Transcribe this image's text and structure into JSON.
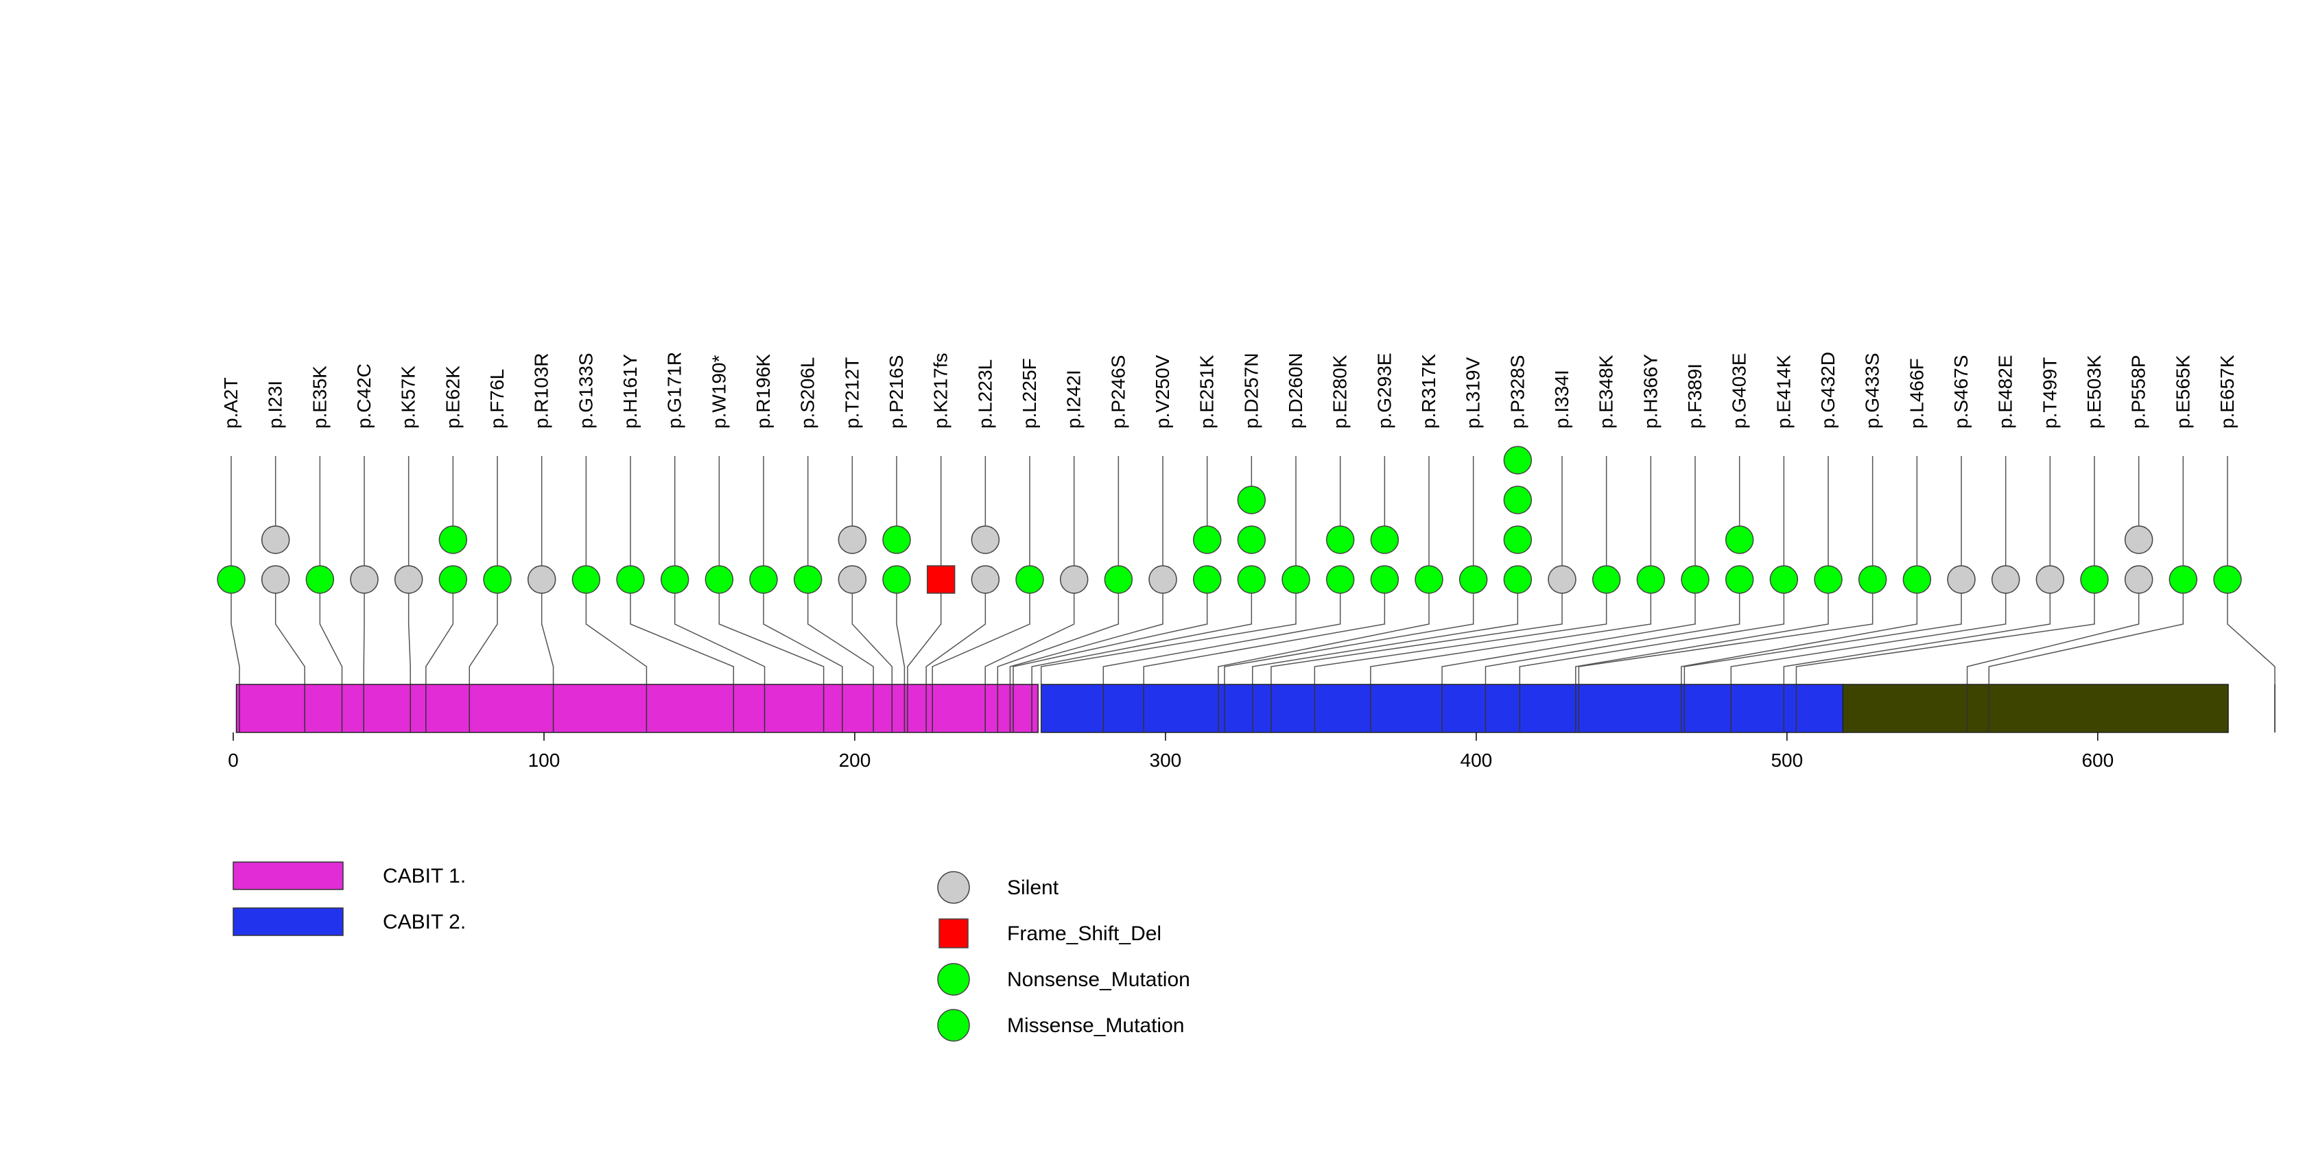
{
  "chart_data": {
    "type": "lollipop",
    "protein_length": 657,
    "x_ticks": [
      0,
      100,
      200,
      300,
      400,
      500,
      600
    ],
    "domains": [
      {
        "name": "CABIT 1.",
        "start": 1,
        "end": 259,
        "color": "#e22cd6"
      },
      {
        "name": "CABIT 2.",
        "start": 260,
        "end": 518,
        "color": "#2233ee"
      },
      {
        "name": "",
        "start": 518,
        "end": 642,
        "color": "#3d4400"
      }
    ],
    "lollipops": [
      {
        "label": "p.A2T",
        "pos": 2,
        "markers": [
          "Missense_Mutation"
        ]
      },
      {
        "label": "p.I23I",
        "pos": 23,
        "markers": [
          "Silent",
          "Silent"
        ]
      },
      {
        "label": "p.E35K",
        "pos": 35,
        "markers": [
          "Missense_Mutation"
        ]
      },
      {
        "label": "p.C42C",
        "pos": 42,
        "markers": [
          "Silent"
        ]
      },
      {
        "label": "p.K57K",
        "pos": 57,
        "markers": [
          "Silent"
        ]
      },
      {
        "label": "p.E62K",
        "pos": 62,
        "markers": [
          "Missense_Mutation",
          "Missense_Mutation"
        ]
      },
      {
        "label": "p.F76L",
        "pos": 76,
        "markers": [
          "Missense_Mutation"
        ]
      },
      {
        "label": "p.R103R",
        "pos": 103,
        "markers": [
          "Silent"
        ]
      },
      {
        "label": "p.G133S",
        "pos": 133,
        "markers": [
          "Missense_Mutation"
        ]
      },
      {
        "label": "p.H161Y",
        "pos": 161,
        "markers": [
          "Missense_Mutation"
        ]
      },
      {
        "label": "p.G171R",
        "pos": 171,
        "markers": [
          "Missense_Mutation"
        ]
      },
      {
        "label": "p.W190*",
        "pos": 190,
        "markers": [
          "Nonsense_Mutation"
        ]
      },
      {
        "label": "p.R196K",
        "pos": 196,
        "markers": [
          "Missense_Mutation"
        ]
      },
      {
        "label": "p.S206L",
        "pos": 206,
        "markers": [
          "Missense_Mutation"
        ]
      },
      {
        "label": "p.T212T",
        "pos": 212,
        "markers": [
          "Silent",
          "Silent"
        ]
      },
      {
        "label": "p.P216S",
        "pos": 216,
        "markers": [
          "Missense_Mutation",
          "Missense_Mutation"
        ]
      },
      {
        "label": "p.K217fs",
        "pos": 217,
        "markers": [
          "Frame_Shift_Del"
        ]
      },
      {
        "label": "p.L223L",
        "pos": 223,
        "markers": [
          "Silent",
          "Silent"
        ]
      },
      {
        "label": "p.L225F",
        "pos": 225,
        "markers": [
          "Missense_Mutation"
        ]
      },
      {
        "label": "p.I242I",
        "pos": 242,
        "markers": [
          "Silent"
        ]
      },
      {
        "label": "p.P246S",
        "pos": 246,
        "markers": [
          "Missense_Mutation"
        ]
      },
      {
        "label": "p.V250V",
        "pos": 250,
        "markers": [
          "Silent"
        ]
      },
      {
        "label": "p.E251K",
        "pos": 251,
        "markers": [
          "Missense_Mutation",
          "Missense_Mutation"
        ]
      },
      {
        "label": "p.D257N",
        "pos": 257,
        "markers": [
          "Missense_Mutation",
          "Missense_Mutation",
          "Missense_Mutation"
        ]
      },
      {
        "label": "p.D260N",
        "pos": 260,
        "markers": [
          "Missense_Mutation"
        ]
      },
      {
        "label": "p.E280K",
        "pos": 280,
        "markers": [
          "Missense_Mutation",
          "Missense_Mutation"
        ]
      },
      {
        "label": "p.G293E",
        "pos": 293,
        "markers": [
          "Missense_Mutation",
          "Missense_Mutation"
        ]
      },
      {
        "label": "p.R317K",
        "pos": 317,
        "markers": [
          "Missense_Mutation"
        ]
      },
      {
        "label": "p.L319V",
        "pos": 319,
        "markers": [
          "Missense_Mutation"
        ]
      },
      {
        "label": "p.P328S",
        "pos": 328,
        "markers": [
          "Missense_Mutation",
          "Missense_Mutation",
          "Missense_Mutation",
          "Missense_Mutation"
        ]
      },
      {
        "label": "p.I334I",
        "pos": 334,
        "markers": [
          "Silent"
        ]
      },
      {
        "label": "p.E348K",
        "pos": 348,
        "markers": [
          "Missense_Mutation"
        ]
      },
      {
        "label": "p.H366Y",
        "pos": 366,
        "markers": [
          "Missense_Mutation"
        ]
      },
      {
        "label": "p.F389I",
        "pos": 389,
        "markers": [
          "Missense_Mutation"
        ]
      },
      {
        "label": "p.G403E",
        "pos": 403,
        "markers": [
          "Missense_Mutation",
          "Missense_Mutation"
        ]
      },
      {
        "label": "p.E414K",
        "pos": 414,
        "markers": [
          "Missense_Mutation"
        ]
      },
      {
        "label": "p.G432D",
        "pos": 432,
        "markers": [
          "Missense_Mutation"
        ]
      },
      {
        "label": "p.G433S",
        "pos": 433,
        "markers": [
          "Missense_Mutation"
        ]
      },
      {
        "label": "p.L466F",
        "pos": 466,
        "markers": [
          "Missense_Mutation"
        ]
      },
      {
        "label": "p.S467S",
        "pos": 467,
        "markers": [
          "Silent"
        ]
      },
      {
        "label": "p.E482E",
        "pos": 482,
        "markers": [
          "Silent"
        ]
      },
      {
        "label": "p.T499T",
        "pos": 499,
        "markers": [
          "Silent"
        ]
      },
      {
        "label": "p.E503K",
        "pos": 503,
        "markers": [
          "Missense_Mutation"
        ]
      },
      {
        "label": "p.P558P",
        "pos": 558,
        "markers": [
          "Silent",
          "Silent"
        ]
      },
      {
        "label": "p.E565K",
        "pos": 565,
        "markers": [
          "Missense_Mutation"
        ]
      },
      {
        "label": "p.E657K",
        "pos": 657,
        "markers": [
          "Missense_Mutation"
        ]
      }
    ],
    "legend_domains": [
      "CABIT 1.",
      "CABIT 2."
    ],
    "legend_types": [
      {
        "name": "Silent",
        "shape": "circle",
        "color": "#cccccc"
      },
      {
        "name": "Frame_Shift_Del",
        "shape": "square",
        "color": "#ff0000"
      },
      {
        "name": "Nonsense_Mutation",
        "shape": "circle",
        "color": "#00ff00"
      },
      {
        "name": "Missense_Mutation",
        "shape": "circle",
        "color": "#00ff00"
      }
    ]
  }
}
